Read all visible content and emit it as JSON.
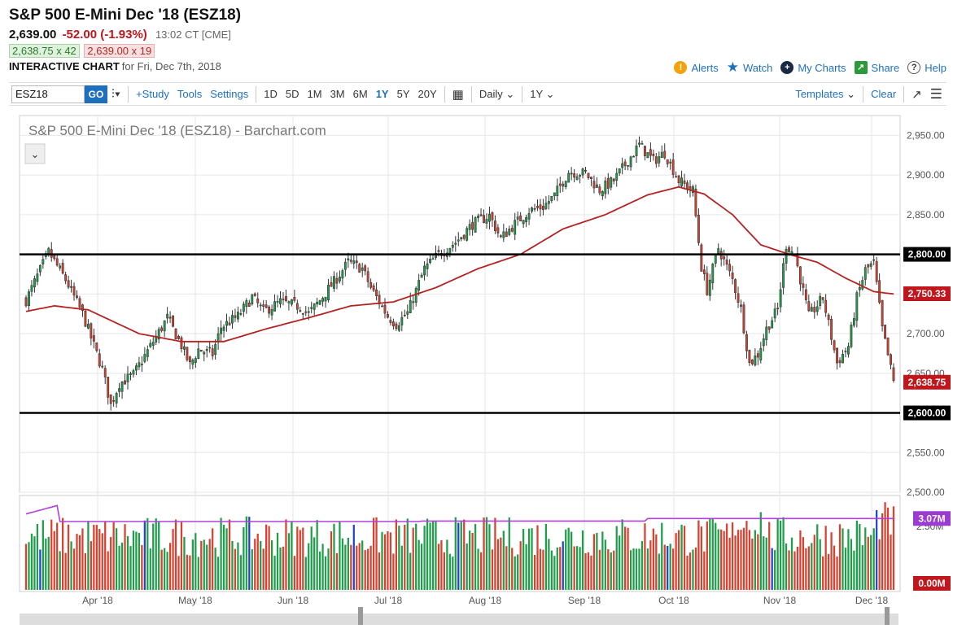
{
  "header": {
    "title": "S&P 500 E-Mini Dec '18 (ESZ18)",
    "last": "2,639.00",
    "change": "-52.00 (-1.93%)",
    "time": "13:02 CT [CME]",
    "bid": "2,638.75 x 42",
    "ask": "2,639.00 x 19",
    "chart_label": "INTERACTIVE CHART",
    "chart_for": "for Fri, Dec 7th, 2018",
    "tools": [
      {
        "label": "Alerts",
        "icon": "alert-icon"
      },
      {
        "label": "Watch",
        "icon": "star-icon"
      },
      {
        "label": "My Charts",
        "icon": "plus-circle-icon"
      },
      {
        "label": "Share",
        "icon": "share-icon"
      },
      {
        "label": "Help",
        "icon": "help-icon"
      }
    ]
  },
  "toolbar": {
    "symbol": "ESZ18",
    "go": "GO",
    "study": "+Study",
    "tools": "Tools",
    "settings": "Settings",
    "periods": [
      "1D",
      "5D",
      "1M",
      "3M",
      "6M",
      "1Y",
      "5Y",
      "20Y"
    ],
    "selected_period": "1Y",
    "interval": "Daily",
    "range": "1Y",
    "templates": "Templates",
    "clear": "Clear"
  },
  "chart_data": {
    "type": "candlestick",
    "title": "S&P 500 E-Mini Dec '18 (ESZ18) - Barchart.com",
    "price_axis": {
      "min": 2500,
      "max": 2975,
      "ticks": [
        "2,500.00",
        "2,550.00",
        "2,600.00",
        "2,650.00",
        "2,700.00",
        "2,750.00",
        "2,800.00",
        "2,850.00",
        "2,900.00",
        "2,950.00"
      ]
    },
    "x_labels": [
      "Apr '18",
      "May '18",
      "Jun '18",
      "Jul '18",
      "Aug '18",
      "Sep '18",
      "Oct '18",
      "Nov '18",
      "Dec '18"
    ],
    "horizontal_lines": [
      2800,
      2600
    ],
    "price_badges": [
      {
        "label": "2,800.00",
        "value": 2800,
        "color": "#000000"
      },
      {
        "label": "2,750.33",
        "value": 2750.33,
        "color": "#c0161c"
      },
      {
        "label": "2,638.75",
        "value": 2638.75,
        "color": "#c0161c"
      },
      {
        "label": "2,600.00",
        "value": 2600,
        "color": "#000000"
      }
    ],
    "close_path": [
      [
        0,
        2742
      ],
      [
        8,
        2803
      ],
      [
        14,
        2768
      ],
      [
        20,
        2725
      ],
      [
        27,
        2655
      ],
      [
        30,
        2610
      ],
      [
        33,
        2637
      ],
      [
        38,
        2648
      ],
      [
        42,
        2672
      ],
      [
        47,
        2702
      ],
      [
        50,
        2720
      ],
      [
        55,
        2685
      ],
      [
        58,
        2660
      ],
      [
        61,
        2680
      ],
      [
        66,
        2674
      ],
      [
        69,
        2708
      ],
      [
        75,
        2722
      ],
      [
        80,
        2746
      ],
      [
        84,
        2728
      ],
      [
        90,
        2740
      ],
      [
        97,
        2734
      ],
      [
        100,
        2725
      ],
      [
        104,
        2742
      ],
      [
        110,
        2770
      ],
      [
        114,
        2790
      ],
      [
        119,
        2782
      ],
      [
        122,
        2758
      ],
      [
        128,
        2722
      ],
      [
        131,
        2712
      ],
      [
        135,
        2726
      ],
      [
        141,
        2782
      ],
      [
        146,
        2800
      ],
      [
        152,
        2815
      ],
      [
        158,
        2838
      ],
      [
        164,
        2849
      ],
      [
        168,
        2820
      ],
      [
        172,
        2835
      ],
      [
        178,
        2855
      ],
      [
        183,
        2860
      ],
      [
        187,
        2874
      ],
      [
        192,
        2904
      ],
      [
        198,
        2902
      ],
      [
        203,
        2881
      ],
      [
        208,
        2893
      ],
      [
        213,
        2918
      ],
      [
        217,
        2938
      ],
      [
        222,
        2918
      ],
      [
        226,
        2928
      ],
      [
        231,
        2893
      ],
      [
        236,
        2880
      ],
      [
        239,
        2784
      ],
      [
        241,
        2755
      ],
      [
        245,
        2808
      ],
      [
        250,
        2768
      ],
      [
        253,
        2731
      ],
      [
        256,
        2662
      ],
      [
        259,
        2674
      ],
      [
        262,
        2706
      ],
      [
        266,
        2731
      ],
      [
        269,
        2812
      ],
      [
        272,
        2800
      ],
      [
        277,
        2722
      ],
      [
        282,
        2745
      ],
      [
        287,
        2663
      ],
      [
        291,
        2684
      ],
      [
        294,
        2745
      ],
      [
        297,
        2780
      ],
      [
        300,
        2789
      ],
      [
        303,
        2706
      ],
      [
        307,
        2639
      ]
    ],
    "ma_path": [
      [
        0,
        2728
      ],
      [
        10,
        2735
      ],
      [
        22,
        2730
      ],
      [
        40,
        2700
      ],
      [
        55,
        2690
      ],
      [
        70,
        2690
      ],
      [
        85,
        2706
      ],
      [
        100,
        2720
      ],
      [
        115,
        2735
      ],
      [
        130,
        2740
      ],
      [
        145,
        2758
      ],
      [
        160,
        2782
      ],
      [
        175,
        2800
      ],
      [
        190,
        2832
      ],
      [
        205,
        2850
      ],
      [
        220,
        2875
      ],
      [
        231,
        2885
      ],
      [
        240,
        2876
      ],
      [
        250,
        2850
      ],
      [
        260,
        2812
      ],
      [
        270,
        2800
      ],
      [
        280,
        2790
      ],
      [
        290,
        2770
      ],
      [
        300,
        2753
      ],
      [
        307,
        2750
      ]
    ],
    "volume": {
      "axis_labels": [
        "2.50M"
      ],
      "badges": [
        {
          "label": "3.07M",
          "color": "#9b3bd1"
        },
        {
          "label": "0.00M",
          "color": "#c0161c"
        }
      ]
    }
  }
}
